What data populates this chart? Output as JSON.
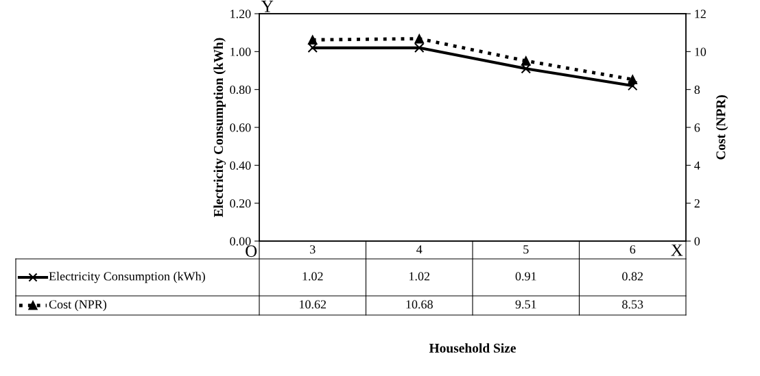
{
  "chart_data": {
    "type": "line",
    "ylabel": "Electricity Consumption (kWh)",
    "y2label": "Cost (NPR)",
    "categories": [
      "3",
      "4",
      "5",
      "6"
    ],
    "series": [
      {
        "name": "Electricity Consumption (kWh)",
        "color": "#000000",
        "values": [
          1.02,
          1.02,
          0.91,
          0.82
        ],
        "marker": "cross",
        "line_style": "solid"
      },
      {
        "name": "Cost (NPR)",
        "color": "#000000",
        "values": [
          10.62,
          10.68,
          9.51,
          8.53
        ],
        "marker": "triangle",
        "line_style": "dotted",
        "axis": "y2"
      }
    ],
    "ylim": [
      0,
      1.2
    ],
    "yticks": [
      {
        "value": 0,
        "label": "0.00"
      },
      {
        "value": 0.2,
        "label": "0.20"
      },
      {
        "value": 0.4,
        "label": "0.40"
      },
      {
        "value": 0.6,
        "label": "0.60"
      },
      {
        "value": 0.8,
        "label": "0.80"
      },
      {
        "value": 1.0,
        "label": "1.00"
      },
      {
        "value": 1.2,
        "label": "1.20"
      }
    ],
    "y2lim": [
      0,
      12
    ],
    "y2ticks": [
      0,
      2,
      4,
      6,
      8,
      10,
      12
    ],
    "data_labels": true,
    "legend": "bottom left",
    "grid": false,
    "annotations": [
      "Y",
      "O",
      "X",
      "Household Size"
    ]
  }
}
